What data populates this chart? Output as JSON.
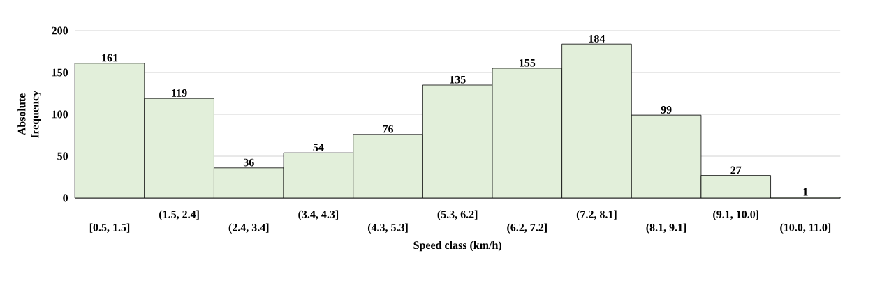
{
  "chart_data": {
    "type": "bar",
    "xlabel": "Speed class (km/h)",
    "ylabel": "Absolute frequency",
    "categories": [
      "[0.5, 1.5]",
      "(1.5, 2.4]",
      "(2.4, 3.4]",
      "(3.4, 4.3]",
      "(4.3, 5.3]",
      "(5.3, 6.2]",
      "(6.2, 7.2]",
      "(7.2, 8.1]",
      "(8.1, 9.1]",
      "(9.1, 10.0]",
      "(10.0, 11.0]"
    ],
    "values": [
      161,
      119,
      36,
      54,
      76,
      135,
      155,
      184,
      99,
      27,
      1
    ],
    "color": "#e2efda",
    "ylim": [
      0,
      200
    ],
    "yticks": [
      0,
      50,
      100,
      150,
      200
    ],
    "grid": "y",
    "data_labels": true
  }
}
